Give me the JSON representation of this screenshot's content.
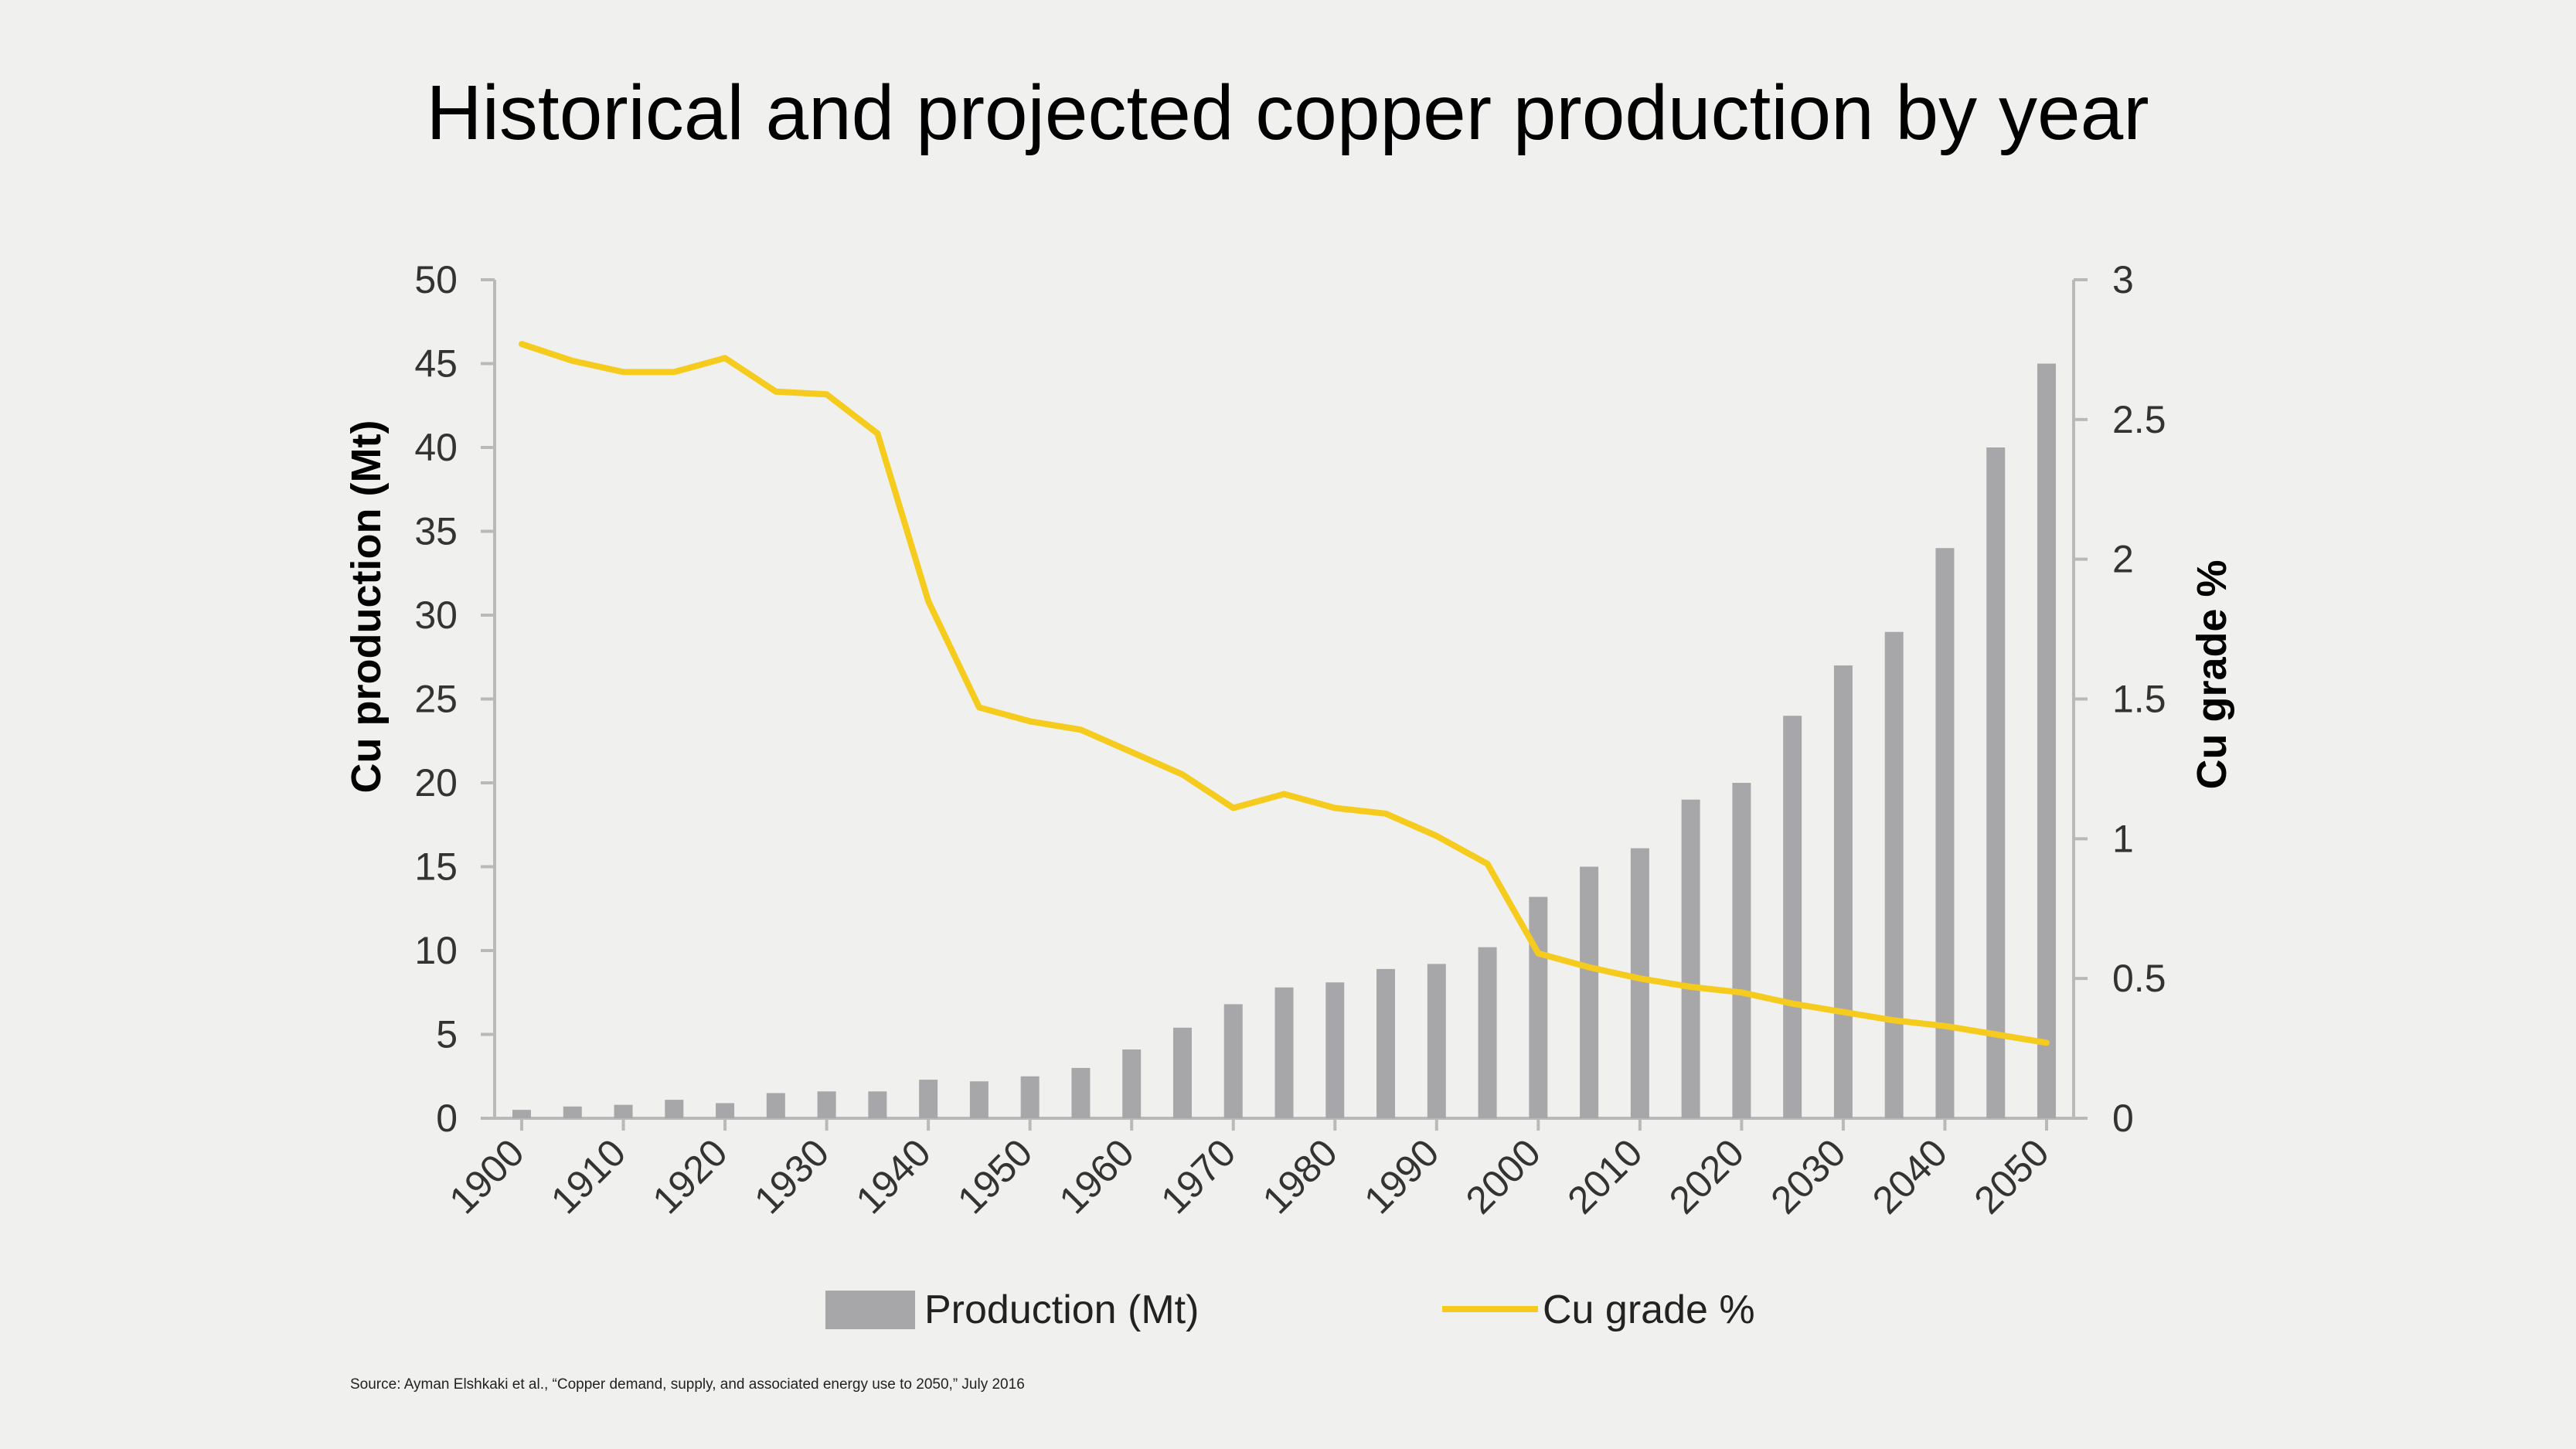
{
  "chart_data": {
    "type": "bar+line",
    "title": "Historical and projected copper production by year",
    "ylabel_left": "Cu production (Mt)",
    "ylabel_right": "Cu grade %",
    "ylim_left": [
      0,
      50
    ],
    "ylim_right": [
      0,
      3
    ],
    "yticks_left": [
      "0",
      "5",
      "10",
      "15",
      "20",
      "25",
      "30",
      "35",
      "40",
      "45",
      "50"
    ],
    "yticks_right": [
      "0",
      "0.5",
      "1",
      "1.5",
      "2",
      "2.5",
      "3"
    ],
    "xtick_labels": [
      "1900",
      "1910",
      "1920",
      "1930",
      "1940",
      "1950",
      "1960",
      "1970",
      "1980",
      "1990",
      "2000",
      "2010",
      "2020",
      "2030",
      "2040",
      "2050"
    ],
    "x": [
      1900,
      1905,
      1910,
      1915,
      1920,
      1925,
      1930,
      1935,
      1940,
      1945,
      1950,
      1955,
      1960,
      1965,
      1970,
      1975,
      1980,
      1985,
      1990,
      1995,
      2000,
      2005,
      2010,
      2015,
      2020,
      2025,
      2030,
      2035,
      2040,
      2045,
      2050
    ],
    "series": [
      {
        "name": "Production (Mt)",
        "kind": "bar",
        "axis": "left",
        "color": "#a7a7a9",
        "values": [
          0.5,
          0.7,
          0.8,
          1.1,
          0.9,
          1.5,
          1.6,
          1.6,
          2.3,
          2.2,
          2.5,
          3.0,
          4.1,
          5.4,
          6.8,
          7.8,
          8.1,
          8.9,
          9.2,
          10.2,
          13.2,
          15.0,
          16.1,
          19.0,
          20.0,
          24.0,
          27.0,
          29.0,
          34.0,
          40.0,
          45.0
        ]
      },
      {
        "name": "Cu grade %",
        "kind": "line",
        "axis": "right",
        "color": "#f5cb1e",
        "values": [
          2.77,
          2.71,
          2.67,
          2.67,
          2.72,
          2.6,
          2.59,
          2.45,
          1.85,
          1.47,
          1.42,
          1.39,
          1.31,
          1.23,
          1.11,
          1.16,
          1.11,
          1.09,
          1.01,
          0.91,
          0.59,
          0.54,
          0.5,
          0.47,
          0.45,
          0.41,
          0.38,
          0.35,
          0.33,
          0.3,
          0.27
        ]
      }
    ],
    "legend": {
      "position": "bottom",
      "items": [
        "Production (Mt)",
        "Cu grade %"
      ]
    },
    "grid": false
  },
  "source_note": "Source: Ayman Elshkaki et al., “Copper demand, supply, and associated energy use to 2050,” July 2016"
}
